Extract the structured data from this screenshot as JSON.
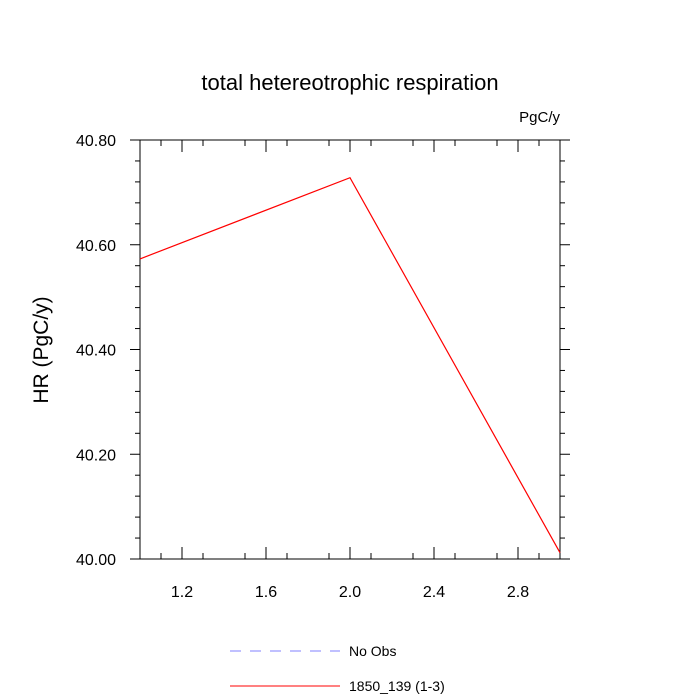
{
  "chart_data": {
    "type": "line",
    "title": "total hetereotrophic respiration",
    "units_label": "PgC/y",
    "ylabel": "HR  (PgC/y)",
    "xlabel": "",
    "xlim": [
      1.0,
      3.0
    ],
    "ylim": [
      40.0,
      40.8
    ],
    "x_ticks": [
      "1.2",
      "1.6",
      "2.0",
      "2.4",
      "2.8"
    ],
    "y_ticks": [
      "40.00",
      "40.20",
      "40.40",
      "40.60",
      "40.80"
    ],
    "series": [
      {
        "name": "1850_139 (1-3)",
        "color": "#ff0000",
        "dash": "solid",
        "x": [
          1.0,
          2.0,
          3.0
        ],
        "y": [
          40.573,
          40.728,
          40.012
        ]
      }
    ],
    "legend": [
      {
        "label": "No Obs",
        "color": "#8080ff",
        "dash": "dashed"
      },
      {
        "label": "1850_139 (1-3)",
        "color": "#ff0000",
        "dash": "solid"
      }
    ],
    "legend_position": "bottom"
  }
}
